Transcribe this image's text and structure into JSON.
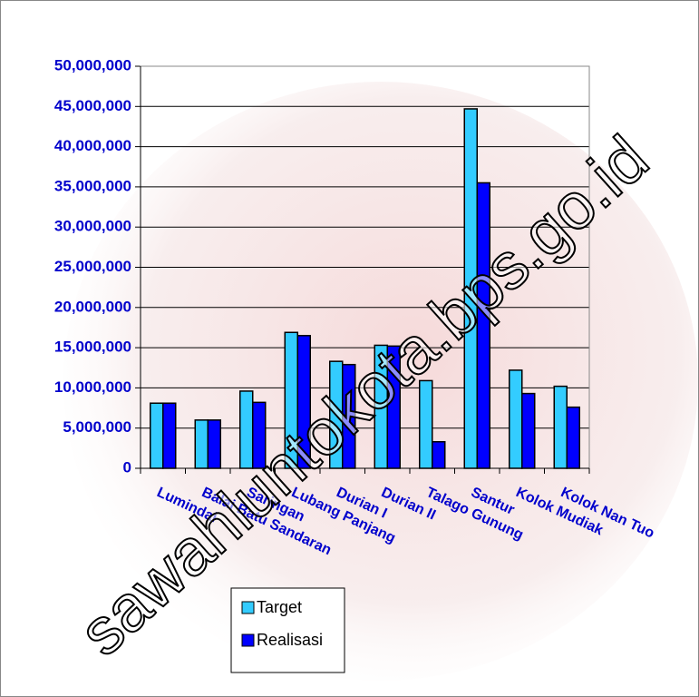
{
  "watermark": "sawahluntokota.bps.go.id",
  "chart_data": {
    "type": "bar",
    "categories": [
      "Lumindai",
      "Balai Batu Sandaran",
      "Saringan",
      "Lubang Panjang",
      "Durian I",
      "Durian II",
      "Talago Gunung",
      "Santur",
      "Kolok Mudiak",
      "Kolok Nan Tuo"
    ],
    "series": [
      {
        "name": "Target",
        "color": "#33ccff",
        "values": [
          8100000,
          6000000,
          9600000,
          16900000,
          13300000,
          15300000,
          10900000,
          44700000,
          12200000,
          10200000
        ]
      },
      {
        "name": "Realisasi",
        "color": "#0000ff",
        "values": [
          8100000,
          6000000,
          8200000,
          16500000,
          12900000,
          15200000,
          3300000,
          35500000,
          9300000,
          7600000
        ]
      }
    ],
    "ylim": [
      0,
      50000000
    ],
    "yticks": [
      0,
      {
        "value": 5000000,
        "label": "5,000,000"
      },
      {
        "value": 10000000,
        "label": "10,000,000"
      },
      {
        "value": 15000000,
        "label": "15,000,000"
      },
      {
        "value": 20000000,
        "label": "20,000,000"
      },
      {
        "value": 25000000,
        "label": "25,000,000"
      },
      {
        "value": 30000000,
        "label": "30,000,000"
      },
      {
        "value": 35000000,
        "label": "35,000,000"
      },
      {
        "value": 40000000,
        "label": "40,000,000"
      },
      {
        "value": 45000000,
        "label": "45,000,000"
      },
      {
        "value": 50000000,
        "label": "50,000,000"
      }
    ],
    "grid": true
  }
}
